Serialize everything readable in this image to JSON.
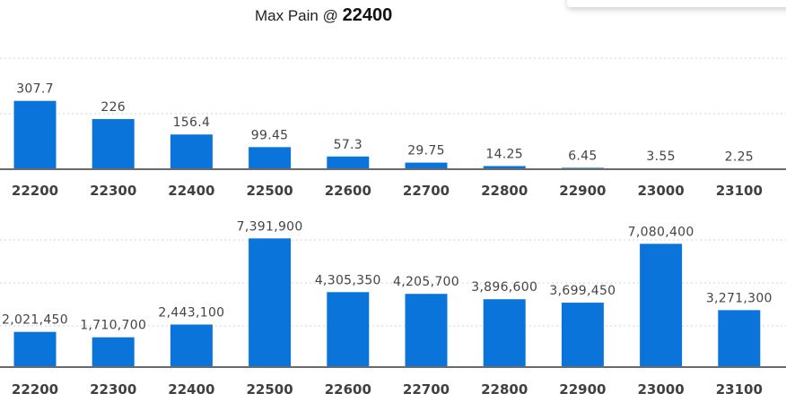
{
  "header": {
    "title_prefix": "Max Pain @",
    "max_pain": "22400"
  },
  "colors": {
    "bar": "#0a74da",
    "axis": "#6a6a6a",
    "grid": "#d4d4d4"
  },
  "chart_data": [
    {
      "type": "bar",
      "categories": [
        "22200",
        "22300",
        "22400",
        "22500",
        "22600",
        "22700",
        "22800",
        "22900",
        "23000",
        "23100"
      ],
      "values": [
        307.7,
        226,
        156.4,
        99.45,
        57.3,
        29.75,
        14.25,
        6.45,
        3.55,
        2.25
      ],
      "labels": [
        "307.7",
        "226",
        "156.4",
        "99.45",
        "57.3",
        "29.75",
        "14.25",
        "6.45",
        "3.55",
        "2.25"
      ],
      "ylim": [
        0,
        500
      ],
      "grid": true
    },
    {
      "type": "bar",
      "categories": [
        "22200",
        "22300",
        "22400",
        "22500",
        "22600",
        "22700",
        "22800",
        "22900",
        "23000",
        "23100"
      ],
      "values": [
        2021450,
        1710700,
        2443100,
        7391900,
        4305350,
        4205700,
        3896600,
        3699450,
        7080400,
        3271300
      ],
      "labels": [
        "2,021,450",
        "1,710,700",
        "2,443,100",
        "7,391,900",
        "4,305,350",
        "4,205,700",
        "3,896,600",
        "3,699,450",
        "7,080,400",
        "3,271,300"
      ],
      "ylim": [
        0,
        9000000
      ],
      "grid": true
    }
  ]
}
